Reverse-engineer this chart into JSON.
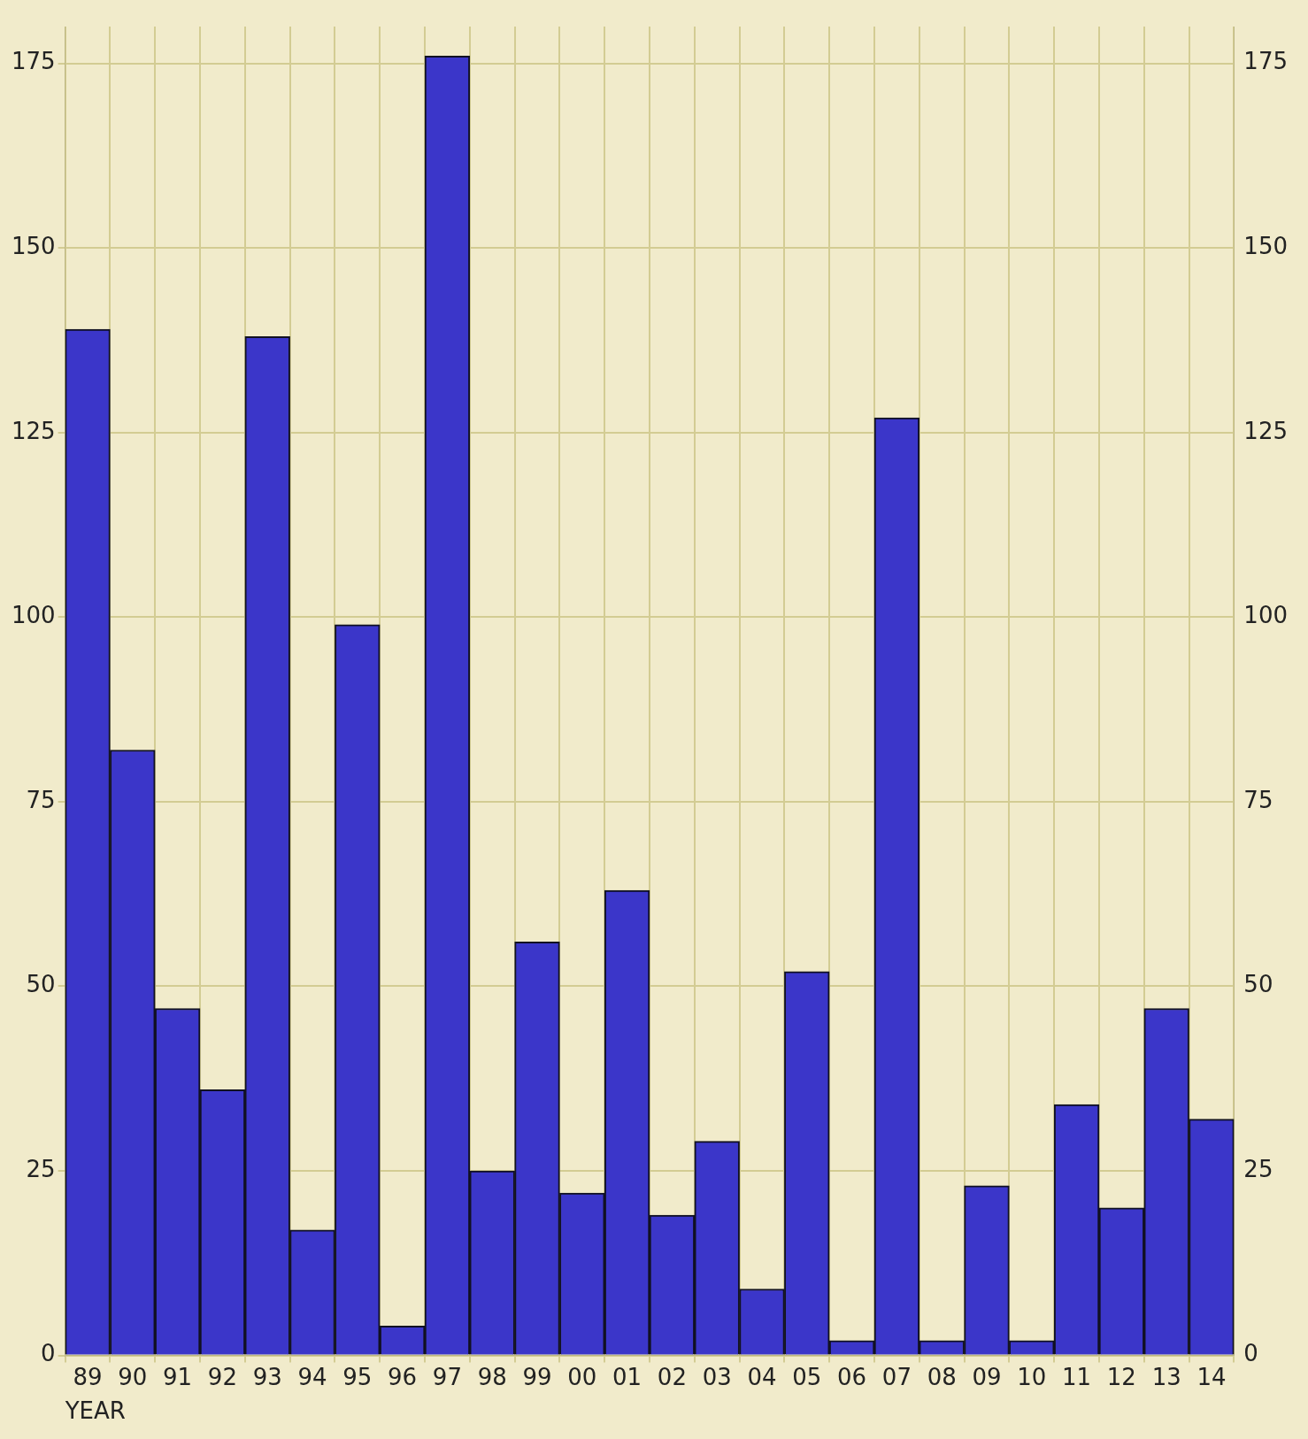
{
  "chart_data": {
    "type": "bar",
    "xlabel": "YEAR",
    "categories": [
      "89",
      "90",
      "91",
      "92",
      "93",
      "94",
      "95",
      "96",
      "97",
      "98",
      "99",
      "00",
      "01",
      "02",
      "03",
      "04",
      "05",
      "06",
      "07",
      "08",
      "09",
      "10",
      "11",
      "12",
      "13",
      "14"
    ],
    "values": [
      139,
      82,
      47,
      36,
      138,
      17,
      99,
      4,
      176,
      25,
      56,
      22,
      63,
      19,
      29,
      9,
      52,
      2,
      127,
      2,
      23,
      2,
      34,
      20,
      47,
      32
    ],
    "color": "#3b36c9",
    "ylim": [
      0,
      180
    ],
    "yticks": [
      0,
      25,
      50,
      75,
      100,
      125,
      150,
      175
    ],
    "y2lim": [
      0,
      180
    ],
    "y2ticks": [
      0,
      25,
      50,
      75,
      100,
      125,
      150,
      175
    ],
    "grid": true
  }
}
